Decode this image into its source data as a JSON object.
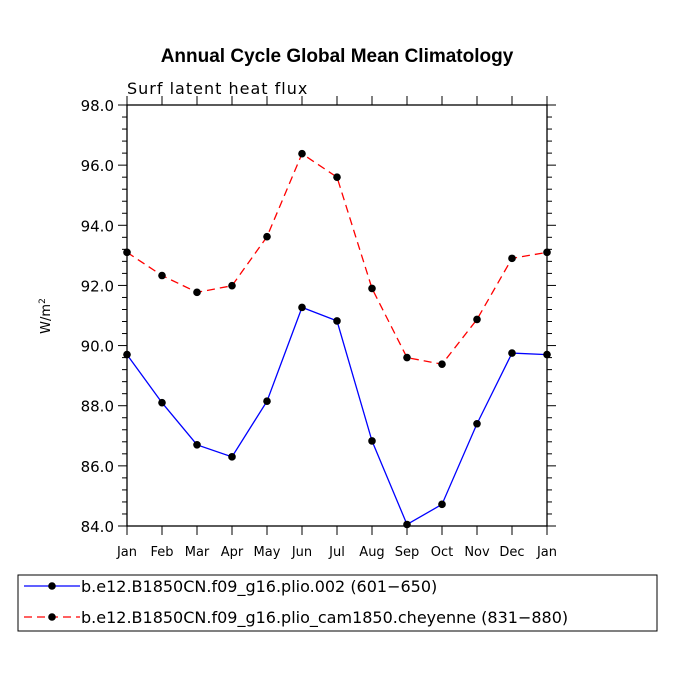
{
  "chart_data": {
    "type": "line",
    "title": "Annual Cycle Global Mean Climatology",
    "subtitle": "Surf latent heat flux",
    "ylabel": "W/m",
    "ylabel_sup": "2",
    "xlabel": "",
    "ylim": [
      84.0,
      98.0
    ],
    "ytick_values": [
      84.0,
      86.0,
      88.0,
      90.0,
      92.0,
      94.0,
      96.0,
      98.0
    ],
    "ytick_labels": [
      "84.0",
      "86.0",
      "88.0",
      "90.0",
      "92.0",
      "94.0",
      "96.0",
      "98.0"
    ],
    "categories": [
      "Jan",
      "Feb",
      "Mar",
      "Apr",
      "May",
      "Jun",
      "Jul",
      "Aug",
      "Sep",
      "Oct",
      "Nov",
      "Dec",
      "Jan"
    ],
    "series": [
      {
        "name": "b.e12.B1850CN.f09_g16.plio.002 (601−650)",
        "color": "#0000ff",
        "dash": "solid",
        "values": [
          89.7,
          88.1,
          86.7,
          86.3,
          88.15,
          91.27,
          90.82,
          86.83,
          84.05,
          84.72,
          87.4,
          89.75,
          89.7
        ]
      },
      {
        "name": "b.e12.B1850CN.f09_g16.plio_cam1850.cheyenne (831−880)",
        "color": "#ff0000",
        "dash": "dashed",
        "values": [
          93.1,
          92.33,
          91.77,
          91.99,
          93.62,
          96.38,
          95.6,
          91.9,
          89.6,
          89.38,
          90.87,
          92.9,
          93.1
        ]
      }
    ],
    "legend_position": "bottom-left"
  }
}
